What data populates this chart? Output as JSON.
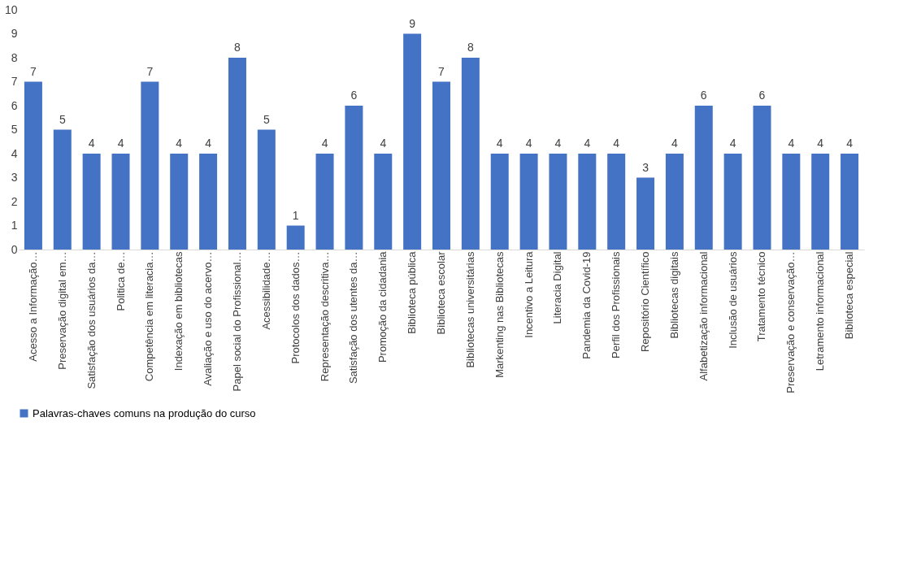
{
  "chart_data": {
    "type": "bar",
    "categories": [
      "Acesso a Informação…",
      "Preservação digital em…",
      "Satisfação dos usuários da…",
      "Politica de…",
      "Competência em literacia…",
      "Indexação  em bibliotecas",
      "Avaliação e uso do acervo…",
      "Papel social do Profissional…",
      "Acessibilidade…",
      "Protocolos dos dados…",
      "Representação descritiva…",
      "Satisfação dos utentes da…",
      "Promoção da cidadania",
      "Biblioteca pública",
      "Biblioteca escolar",
      "Bibliotecas universitárias",
      "Markenting nas Bibliotecas",
      "Incentivo a Leitura",
      "Literacia Digital",
      "Pandemia da Covid-19",
      "Perfil dos Profissionais",
      "Repositório Científico",
      "Bibliotecas digitais",
      "Alfabetização informacional",
      "Inclusão de usuários",
      "Tratamento técnico",
      "Preservação e conservação…",
      "Letramento informacional",
      "Biblioteca especial"
    ],
    "series": [
      {
        "name": "Palavras-chaves comuns na produção do curso",
        "color": "#4472c4",
        "values": [
          7,
          5,
          4,
          4,
          7,
          4,
          4,
          8,
          5,
          1,
          4,
          6,
          4,
          9,
          7,
          8,
          4,
          4,
          4,
          4,
          4,
          3,
          4,
          6,
          4,
          6,
          4,
          4,
          4
        ]
      }
    ],
    "ylim": [
      0,
      10
    ],
    "yticks": [
      0,
      1,
      2,
      3,
      4,
      5,
      6,
      7,
      8,
      9,
      10
    ],
    "data_labels": true,
    "legend": "bottom",
    "grid": false
  }
}
